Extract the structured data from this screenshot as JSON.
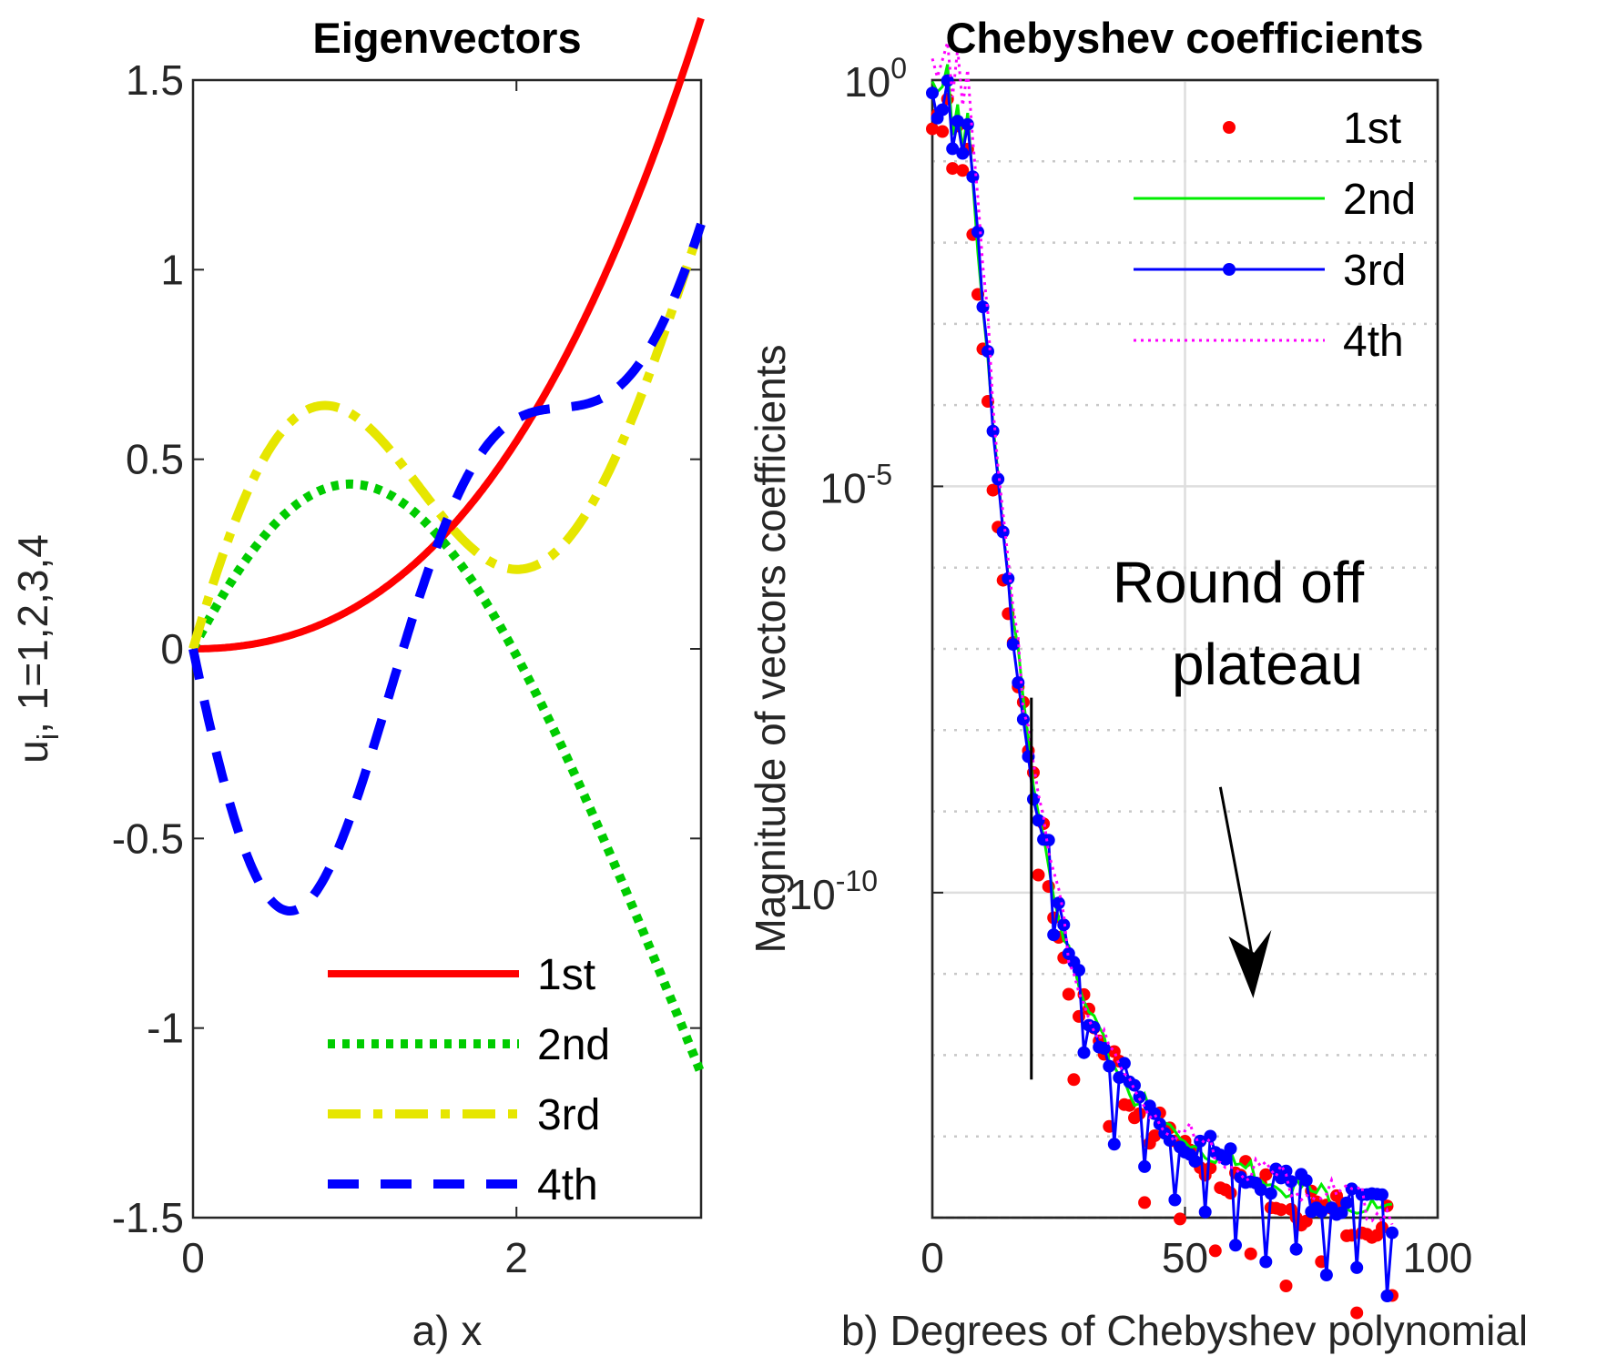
{
  "chart_data": [
    {
      "type": "line",
      "title": "Eigenvectors",
      "xlabel": "a) x",
      "ylabel_main": "u",
      "ylabel_sub": "i",
      "ylabel_rest": ", 1=1,2,3,4",
      "xlim": [
        0,
        3.1416
      ],
      "ylim": [
        -1.5,
        1.5
      ],
      "xticks": [
        0,
        2
      ],
      "xtick_labels": [
        "0",
        "2"
      ],
      "yticks": [
        -1.5,
        -1,
        -0.5,
        0,
        0.5,
        1,
        1.5
      ],
      "ytick_labels": [
        "-1.5",
        "-1",
        "-0.5",
        "0",
        "0.5",
        "1",
        "1.5"
      ],
      "legend_position": "bottom-right",
      "series": [
        {
          "name": "1st",
          "color": "#ff0000",
          "style": "solid",
          "kind": "poly",
          "a": 0.0816,
          "b": 0.0869
        },
        {
          "name": "2nd",
          "color": "#00cc00",
          "style": "dotted",
          "kind": "sin",
          "k": 1.0,
          "amp": 0.82,
          "end": -1.12
        },
        {
          "name": "3rd",
          "color": "#e6e600",
          "style": "dashdot",
          "kind": "sin",
          "k": 1.7,
          "amp": 0.855,
          "end": 1.12
        },
        {
          "name": "4th",
          "color": "#0000ff",
          "style": "dashed",
          "kind": "sin",
          "k": 2.3,
          "amp": -0.88,
          "end": 1.12
        }
      ]
    },
    {
      "type": "scatter",
      "title": "Chebyshev coefficients",
      "xlabel": "b) Degrees of Chebyshev polynomial",
      "ylabel": "Magnitude of vectors coefficients",
      "xlim": [
        0,
        100
      ],
      "ylim_log10": [
        -14,
        0
      ],
      "xticks": [
        0,
        50,
        100
      ],
      "xtick_labels": [
        "0",
        "50",
        "100"
      ],
      "yticks_log10": [
        0,
        -5,
        -10
      ],
      "ytick_base": "10",
      "ytick_exponents": [
        "0",
        "-5",
        "-10"
      ],
      "legend_position": "top-right",
      "annotation": {
        "line1": "Round off",
        "line2": "plateau",
        "arrow_from": [
          57,
          -8.7
        ],
        "arrow_to": [
          63.5,
          -11.3
        ],
        "vline_x": 19.6,
        "vline_ylog": [
          -7.6,
          -12.3
        ]
      },
      "series": [
        {
          "name": "1st",
          "color": "#ff0000",
          "marker": "dot",
          "line": "none"
        },
        {
          "name": "2nd",
          "color": "#00ee00",
          "marker": "none",
          "line": "solid"
        },
        {
          "name": "3rd",
          "color": "#0000ff",
          "marker": "dot",
          "line": "solid"
        },
        {
          "name": "4th",
          "color": "#ff00ff",
          "marker": "none",
          "line": "dotted"
        }
      ],
      "x": [
        0,
        1,
        2,
        3,
        4,
        5,
        6,
        7,
        8,
        9,
        10,
        11,
        12,
        13,
        14,
        15,
        16,
        17,
        18,
        19,
        20,
        21,
        22,
        23,
        24,
        25,
        26,
        27,
        28,
        29,
        30,
        31,
        32,
        33,
        34,
        35,
        36,
        37,
        38,
        39,
        40,
        41,
        42,
        43,
        44,
        45,
        46,
        47,
        48,
        49,
        50,
        51,
        52,
        53,
        54,
        55,
        56,
        57,
        58,
        59,
        60,
        61,
        62,
        63,
        64,
        65,
        66,
        67,
        68,
        69,
        70,
        71,
        72,
        73,
        74,
        75,
        76,
        77,
        78,
        79,
        80,
        81,
        82,
        83,
        84,
        85,
        86,
        87,
        88,
        89,
        90,
        91
      ],
      "log10_values": [
        -0.2,
        -0.3,
        -0.25,
        0.0,
        -0.8,
        -0.3,
        -0.9,
        -0.5,
        -1.3,
        -2.1,
        -2.9,
        -3.5,
        -4.4,
        -5.1,
        -5.7,
        -6.3,
        -6.8,
        -7.2,
        -7.7,
        -8.2,
        -8.6,
        -8.9,
        -9.2,
        -9.6,
        -9.9,
        -10.2,
        -10.5,
        -10.8,
        -11.0,
        -11.2,
        -11.4,
        -11.5,
        -11.6,
        -11.8,
        -11.9,
        -12.0,
        -12.1,
        -12.2,
        -12.3,
        -12.4,
        -12.5,
        -12.55,
        -12.6,
        -12.7,
        -12.75,
        -12.8,
        -12.85,
        -12.9,
        -12.95,
        -13.0,
        -13.0,
        -13.05,
        -13.1,
        -13.1,
        -13.15,
        -13.2,
        -13.2,
        -13.25,
        -13.3,
        -13.3,
        -13.35,
        -13.35,
        -13.4,
        -13.4,
        -13.45,
        -13.45,
        -13.5,
        -13.5,
        -13.55,
        -13.55,
        -13.6,
        -13.6,
        -13.6,
        -13.65,
        -13.65,
        -13.7,
        -13.7,
        -13.7,
        -13.75,
        -13.75,
        -13.8,
        -13.8,
        -13.8,
        -13.85,
        -13.85,
        -13.85,
        -13.9,
        -13.9,
        -13.9,
        -13.95,
        -13.95,
        -13.95
      ]
    }
  ]
}
